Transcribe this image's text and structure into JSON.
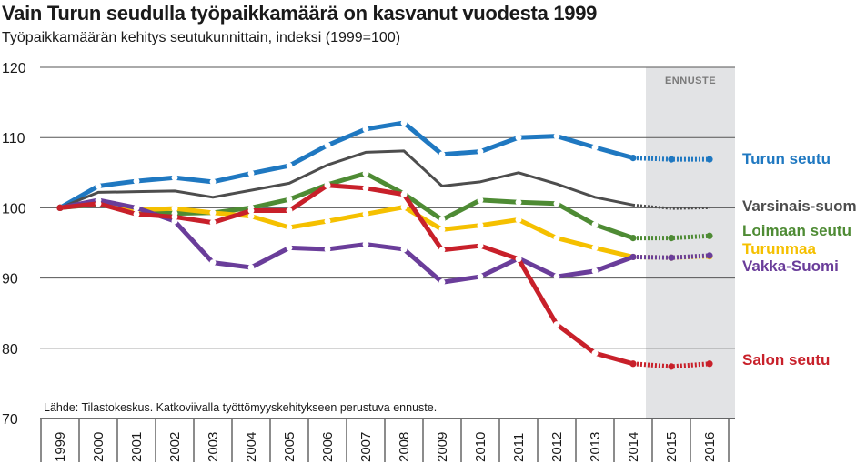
{
  "title": "Vain Turun seudulla työpaikkamäärä on kasvanut vuodesta 1999",
  "subtitle": "Työpaikkamäärän kehitys seutukunnittain, indeksi (1999=100)",
  "chart_data": {
    "type": "line",
    "title": "Vain Turun seudulla työpaikkamäärä on kasvanut vuodesta 1999",
    "subtitle": "Työpaikkamäärän kehitys seutukunnittain, indeksi (1999=100)",
    "source": "Lähde: Tilastokeskus. Katkoviivalla työttömyyskehitykseen perustuva ennuste.",
    "forecast_label": "ENNUSTE",
    "forecast_from": "2014",
    "forecast_to": "2016",
    "x": [
      "1999",
      "2000",
      "2001",
      "2002",
      "2003",
      "2004",
      "2005",
      "2006",
      "2007",
      "2008",
      "2009",
      "2010",
      "2011",
      "2012",
      "2013",
      "2014",
      "2015",
      "2016"
    ],
    "ylim": [
      70,
      120
    ],
    "yticks": [
      70,
      80,
      90,
      100,
      110,
      120
    ],
    "grid": true,
    "legend": "right, labels at line ends",
    "series": [
      {
        "name": "Turun seutu",
        "color": "#1f78c1",
        "markers": true,
        "values": [
          100,
          103.1,
          103.8,
          104.3,
          103.7,
          104.9,
          106.0,
          108.9,
          111.2,
          112.1,
          107.6,
          108.0,
          110.0,
          110.2,
          108.6,
          107.1,
          106.9,
          106.9
        ]
      },
      {
        "name": "Varsinais-suomi",
        "color": "#4d4d4d",
        "markers": false,
        "values": [
          100,
          102.2,
          102.3,
          102.4,
          101.5,
          102.5,
          103.5,
          106.1,
          107.9,
          108.1,
          103.1,
          103.7,
          105.0,
          103.4,
          101.5,
          100.4,
          99.9,
          100.0
        ]
      },
      {
        "name": "Loimaan seutu",
        "color": "#4e8b34",
        "markers": true,
        "values": [
          100,
          100.5,
          99.5,
          99.2,
          99.3,
          100.0,
          101.2,
          103.3,
          104.9,
          102.0,
          98.3,
          101.1,
          100.8,
          100.6,
          97.6,
          95.7,
          95.7,
          96.0
        ]
      },
      {
        "name": "Turunmaa",
        "color": "#f5c000",
        "markers": true,
        "values": [
          100,
          100.8,
          99.7,
          99.9,
          99.3,
          98.8,
          97.2,
          98.1,
          99.1,
          100.1,
          96.9,
          97.5,
          98.3,
          95.7,
          94.3,
          93.0,
          92.9,
          93.1
        ]
      },
      {
        "name": "Vakka-Suomi",
        "color": "#6a3d9a",
        "markers": true,
        "values": [
          100,
          101.1,
          100.0,
          98.1,
          92.2,
          91.5,
          94.3,
          94.1,
          94.8,
          94.1,
          89.4,
          90.2,
          92.8,
          90.2,
          91.0,
          93.0,
          92.9,
          93.2
        ]
      },
      {
        "name": "Salon seutu",
        "color": "#c8202a",
        "markers": true,
        "values": [
          100,
          100.6,
          99.1,
          98.7,
          97.9,
          99.6,
          99.6,
          103.2,
          102.8,
          101.9,
          94.0,
          94.6,
          92.7,
          83.4,
          79.3,
          77.8,
          77.4,
          77.8
        ]
      }
    ]
  }
}
